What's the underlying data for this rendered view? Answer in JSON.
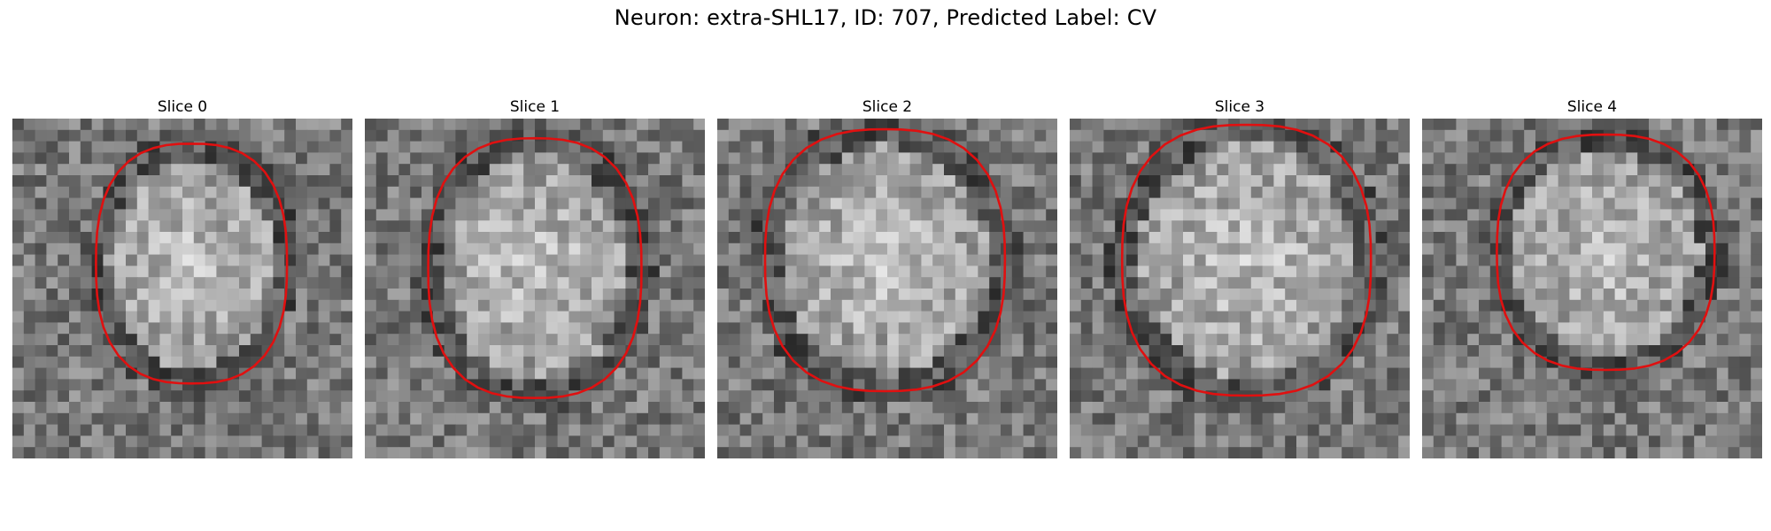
{
  "figure": {
    "title": "Neuron: extra-SHL17, ID: 707, Predicted Label: CV"
  },
  "colors": {
    "contour": "#e01010",
    "background": "#ffffff",
    "image_colormap": "gray"
  },
  "panels": [
    {
      "title": "Slice 0"
    },
    {
      "title": "Slice 1"
    },
    {
      "title": "Slice 2"
    },
    {
      "title": "Slice 3"
    },
    {
      "title": "Slice 4"
    }
  ]
}
